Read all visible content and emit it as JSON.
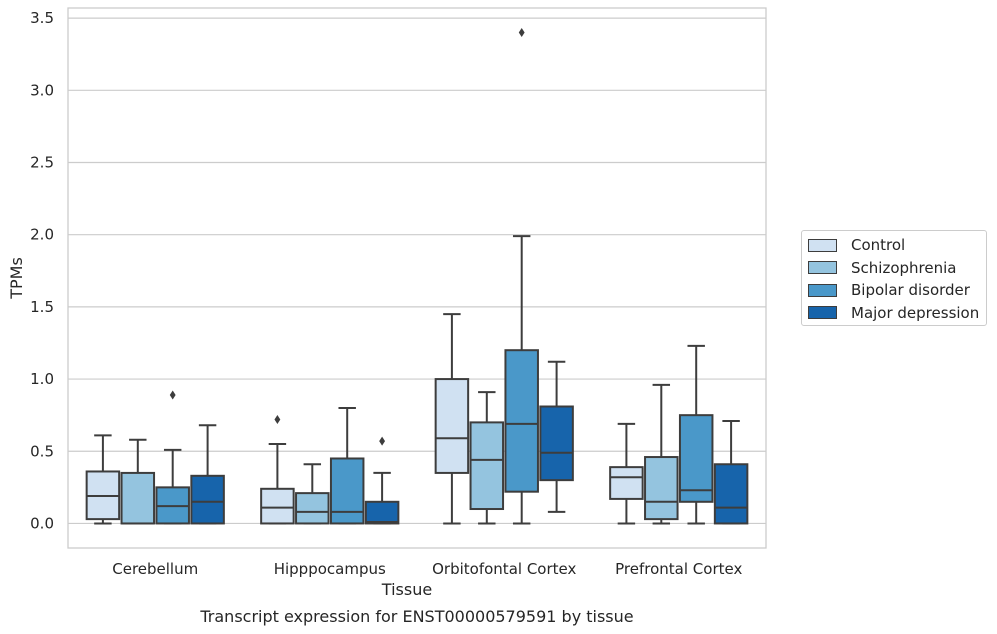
{
  "chart_data": {
    "type": "box",
    "title": "Transcript expression for ENST00000579591 by tissue",
    "xlabel": "Tissue",
    "ylabel": "TPMs",
    "ylim": [
      -0.17,
      3.57
    ],
    "yticks": [
      "0.0",
      "0.5",
      "1.0",
      "1.5",
      "2.0",
      "2.5",
      "3.0",
      "3.5"
    ],
    "ytick_values": [
      0,
      0.5,
      1.0,
      1.5,
      2.0,
      2.5,
      3.0,
      3.5
    ],
    "grid": true,
    "legend_position": "right",
    "categories": [
      "Cerebellum",
      "Hipppocampus",
      "Orbitofontal Cortex",
      "Prefrontal Cortex"
    ],
    "series": [
      {
        "name": "Control",
        "color": "#d0e1f2",
        "boxes": [
          {
            "min": 0.0,
            "q1": 0.03,
            "median": 0.19,
            "q3": 0.36,
            "max": 0.61,
            "outliers": []
          },
          {
            "min": 0.0,
            "q1": 0.0,
            "median": 0.11,
            "q3": 0.24,
            "max": 0.55,
            "outliers": [
              0.72
            ]
          },
          {
            "min": 0.0,
            "q1": 0.35,
            "median": 0.59,
            "q3": 1.0,
            "max": 1.45,
            "outliers": []
          },
          {
            "min": 0.0,
            "q1": 0.17,
            "median": 0.32,
            "q3": 0.39,
            "max": 0.69,
            "outliers": []
          }
        ]
      },
      {
        "name": "Schizophrenia",
        "color": "#94c4df",
        "boxes": [
          {
            "min": 0.0,
            "q1": 0.0,
            "median": 0.0,
            "q3": 0.35,
            "max": 0.58,
            "outliers": []
          },
          {
            "min": 0.0,
            "q1": 0.0,
            "median": 0.08,
            "q3": 0.21,
            "max": 0.41,
            "outliers": []
          },
          {
            "min": 0.0,
            "q1": 0.1,
            "median": 0.44,
            "q3": 0.7,
            "max": 0.91,
            "outliers": []
          },
          {
            "min": 0.0,
            "q1": 0.03,
            "median": 0.15,
            "q3": 0.46,
            "max": 0.96,
            "outliers": []
          }
        ]
      },
      {
        "name": "Bipolar disorder",
        "color": "#4a98c9",
        "boxes": [
          {
            "min": 0.0,
            "q1": 0.0,
            "median": 0.12,
            "q3": 0.25,
            "max": 0.51,
            "outliers": [
              0.89
            ]
          },
          {
            "min": 0.0,
            "q1": 0.0,
            "median": 0.08,
            "q3": 0.45,
            "max": 0.8,
            "outliers": []
          },
          {
            "min": 0.0,
            "q1": 0.22,
            "median": 0.69,
            "q3": 1.2,
            "max": 1.99,
            "outliers": [
              3.4
            ]
          },
          {
            "min": 0.0,
            "q1": 0.15,
            "median": 0.23,
            "q3": 0.75,
            "max": 1.23,
            "outliers": []
          }
        ]
      },
      {
        "name": "Major depression",
        "color": "#1764ab",
        "boxes": [
          {
            "min": 0.0,
            "q1": 0.0,
            "median": 0.15,
            "q3": 0.33,
            "max": 0.68,
            "outliers": []
          },
          {
            "min": 0.0,
            "q1": 0.0,
            "median": 0.01,
            "q3": 0.15,
            "max": 0.35,
            "outliers": [
              0.57
            ]
          },
          {
            "min": 0.08,
            "q1": 0.3,
            "median": 0.49,
            "q3": 0.81,
            "max": 1.12,
            "outliers": []
          },
          {
            "min": 0.0,
            "q1": 0.0,
            "median": 0.11,
            "q3": 0.41,
            "max": 0.71,
            "outliers": []
          }
        ]
      }
    ]
  }
}
